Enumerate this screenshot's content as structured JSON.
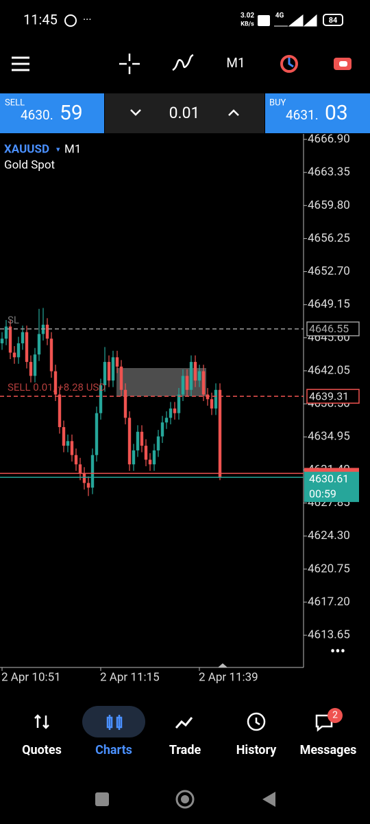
{
  "status": {
    "time": "11:45",
    "speed": "3.02",
    "speed_unit": "KB/s",
    "network": "4G",
    "battery": "84"
  },
  "toolbar": {
    "timeframe": "M1"
  },
  "trade_panel": {
    "sell_label": "SELL",
    "sell_price_main": "4630.",
    "sell_price_big": "59",
    "volume": "0.01",
    "buy_label": "BUY",
    "buy_price_main": "4631.",
    "buy_price_big": "03"
  },
  "chart_data": {
    "type": "candlestick",
    "symbol": "XAUUSD",
    "timeframe": "M1",
    "description": "Gold Spot",
    "up_color": "#26a69a",
    "down_color": "#ef5350",
    "categories": [
      "2 Apr 10:51",
      null,
      null,
      null,
      null,
      null,
      null,
      null,
      null,
      null,
      null,
      null,
      null,
      null,
      null,
      null,
      null,
      null,
      null,
      null,
      null,
      null,
      null,
      null,
      "2 Apr 11:15",
      null,
      null,
      null,
      null,
      null,
      null,
      null,
      null,
      null,
      null,
      null,
      null,
      null,
      null,
      null,
      null,
      null,
      null,
      null,
      null,
      null,
      null,
      null,
      "2 Apr 11:39",
      null,
      null,
      null,
      null,
      null
    ],
    "open": [
      4645.0,
      4645.5,
      4646.8,
      4644.0,
      4643.5,
      4645.0,
      4646.2,
      4643.0,
      4641.5,
      4643.8,
      4646.0,
      4647.0,
      4645.5,
      4642.0,
      4639.5,
      4636.0,
      4634.0,
      4634.5,
      4633.0,
      4632.0,
      4631.0,
      4630.0,
      4629.5,
      4633.0,
      4637.5,
      4640.5,
      4643.0,
      4641.0,
      4643.5,
      4642.5,
      4640.0,
      4637.0,
      4632.0,
      4633.5,
      4635.5,
      4634.0,
      4632.5,
      4632.0,
      4633.5,
      4635.0,
      4636.5,
      4637.0,
      4638.0,
      4637.5,
      4639.5,
      4641.5,
      4640.0,
      4643.0,
      4641.0,
      4642.0,
      4639.5,
      4639.0,
      4638.0,
      4640.0
    ],
    "high": [
      4646.2,
      4647.5,
      4647.5,
      4644.7,
      4645.7,
      4646.9,
      4646.9,
      4643.7,
      4644.5,
      4648.7,
      4648.8,
      4647.7,
      4646.2,
      4642.7,
      4640.2,
      4636.7,
      4635.2,
      4635.2,
      4633.7,
      4632.7,
      4631.7,
      4630.7,
      4633.7,
      4638.2,
      4641.2,
      4644.6,
      4643.7,
      4644.2,
      4644.2,
      4643.2,
      4640.7,
      4637.7,
      4634.2,
      4636.2,
      4636.2,
      4634.7,
      4633.2,
      4634.2,
      4635.7,
      4637.2,
      4637.7,
      4638.7,
      4638.7,
      4640.2,
      4642.2,
      4642.2,
      4643.7,
      4643.7,
      4642.7,
      4642.7,
      4640.2,
      4639.7,
      4640.7,
      4640.7
    ],
    "low": [
      4644.3,
      4644.8,
      4643.3,
      4642.8,
      4642.8,
      4644.3,
      4642.3,
      4640.8,
      4640.8,
      4643.1,
      4645.3,
      4644.8,
      4641.3,
      4638.8,
      4635.3,
      4633.3,
      4633.3,
      4632.3,
      4631.3,
      4630.3,
      4629.3,
      4628.6,
      4628.8,
      4632.3,
      4636.8,
      4639.8,
      4640.3,
      4640.3,
      4641.8,
      4639.3,
      4636.3,
      4631.3,
      4631.3,
      4632.8,
      4633.3,
      4631.8,
      4631.3,
      4631.3,
      4632.8,
      4634.3,
      4635.8,
      4636.3,
      4636.8,
      4636.8,
      4638.8,
      4639.3,
      4639.3,
      4640.3,
      4640.3,
      4638.8,
      4638.3,
      4637.3,
      4637.3,
      4630.3
    ],
    "close": [
      4645.5,
      4646.8,
      4644.0,
      4643.5,
      4645.0,
      4646.2,
      4643.0,
      4641.5,
      4643.8,
      4646.0,
      4647.0,
      4645.5,
      4642.0,
      4639.5,
      4636.0,
      4634.0,
      4634.5,
      4633.0,
      4632.0,
      4631.0,
      4630.0,
      4629.5,
      4633.0,
      4637.5,
      4640.5,
      4643.0,
      4641.0,
      4643.5,
      4642.5,
      4640.0,
      4637.0,
      4632.0,
      4633.5,
      4635.5,
      4634.0,
      4632.5,
      4632.0,
      4633.5,
      4635.0,
      4636.5,
      4637.0,
      4638.0,
      4637.5,
      4639.5,
      4641.5,
      4640.0,
      4643.0,
      4641.0,
      4642.0,
      4639.5,
      4639.0,
      4638.0,
      4640.0,
      4630.6
    ],
    "ylim": [
      4610.19,
      4667.49
    ],
    "yticks": [
      {
        "value": 4666.9,
        "label": "4666.90"
      },
      4663.35,
      {
        "value": 4659.8,
        "label": "4659.80"
      },
      4656.25,
      {
        "value": 4652.7,
        "label": "4652.70"
      },
      4649.15,
      {
        "value": 4645.6,
        "label": "4645.60"
      },
      4642.05,
      {
        "value": 4638.5,
        "label": "4638.50"
      },
      4634.95,
      {
        "value": 4631.4,
        "label": "4631.40"
      },
      4627.85,
      {
        "value": 4624.3,
        "label": "4624.30"
      },
      4620.75,
      {
        "value": 4617.2,
        "label": "4617.20"
      },
      4613.65
    ],
    "levels": [
      {
        "label": "SL",
        "value": 4646.55,
        "value_label": "4646.55",
        "color": "#9e9e9e"
      },
      {
        "label": "SELL 0.01, +8.28 USD",
        "value": 4639.31,
        "value_label": "4639.31",
        "color": "#ef5350"
      },
      {
        "value": 4631.03,
        "color": "#ef5350"
      },
      {
        "value": 4630.61,
        "value_label": "4630.61",
        "color": "#26a69a",
        "countdown": "00:59"
      }
    ]
  },
  "nav": {
    "items": [
      "Quotes",
      "Charts",
      "Trade",
      "History",
      "Messages"
    ],
    "active": "Charts",
    "badge": "2"
  }
}
